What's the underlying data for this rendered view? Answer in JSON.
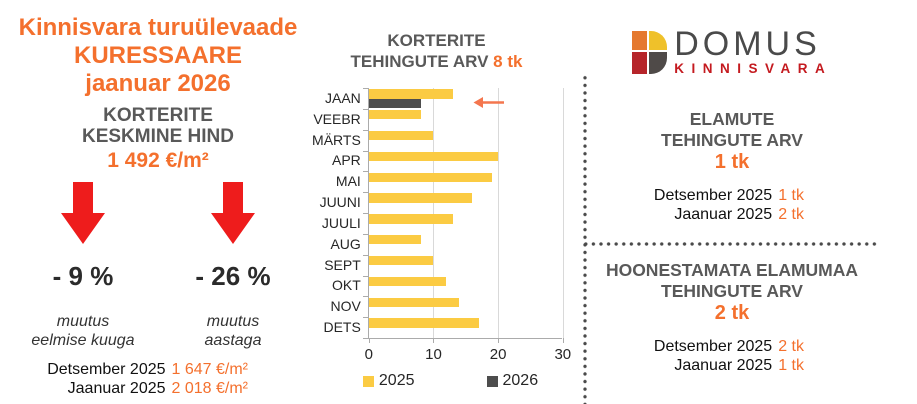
{
  "colors": {
    "accent_orange": "#F4702D",
    "arrow_red": "#EE1C1C",
    "heading_gray": "#595959",
    "bar_yellow": "#FBCB43",
    "bar_dark": "#4D4D4D",
    "logo_red": "#C41A1F"
  },
  "left_panel": {
    "title_lines": [
      "Kinnisvara turuülevaade",
      "KURESSAARE",
      "jaanuar 2026"
    ],
    "subtitle_lines": [
      "KORTERITE",
      "KESKMINE HIND"
    ],
    "price": "1 492 €/m²",
    "changes": [
      {
        "pct": "- 9 %",
        "caption_line1": "muutus",
        "caption_line2": "eelmise kuuga"
      },
      {
        "pct": "- 26 %",
        "caption_line1": "muutus",
        "caption_line2": "aastaga"
      }
    ],
    "stats": [
      {
        "label": "Detsember 2025",
        "value": "1 647 €/m²"
      },
      {
        "label": "Jaanuar 2025",
        "value": "2 018 €/m²"
      }
    ]
  },
  "chart": {
    "title_line1": "KORTERITE",
    "title_line2": "TEHINGUTE ARV",
    "title_value": "8 tk"
  },
  "chart_data": {
    "type": "bar",
    "orientation": "horizontal",
    "title": "KORTERITE TEHINGUTE ARV 8 tk",
    "categories": [
      "JAAN",
      "VEEBR",
      "MÄRTS",
      "APR",
      "MAI",
      "JUUNI",
      "JUULI",
      "AUG",
      "SEPT",
      "OKT",
      "NOV",
      "DETS"
    ],
    "series": [
      {
        "name": "2025",
        "color": "#FBCB43",
        "values": [
          13,
          8,
          10,
          20,
          19,
          16,
          13,
          8,
          10,
          12,
          14,
          17
        ]
      },
      {
        "name": "2026",
        "color": "#4D4D4D",
        "values": [
          8,
          null,
          null,
          null,
          null,
          null,
          null,
          null,
          null,
          null,
          null,
          null
        ]
      }
    ],
    "xlim": [
      0,
      30
    ],
    "xticks": [
      0,
      10,
      20,
      30
    ],
    "grid": true,
    "legend_position": "bottom",
    "annotation": {
      "symbol": "left-arrow",
      "target_category": "JAAN",
      "target_series": "2026",
      "color": "#F4764E"
    }
  },
  "logo": {
    "name": "DOMUS",
    "tagline": "KINNISVARA"
  },
  "right_panel": {
    "sections": [
      {
        "title_line1": "ELAMUTE",
        "title_line2": "TEHINGUTE ARV",
        "value": "1 tk",
        "stats": [
          {
            "label": "Detsember 2025",
            "value": "1 tk"
          },
          {
            "label": "Jaanuar 2025",
            "value": "2 tk"
          }
        ]
      },
      {
        "title_line1": "HOONESTAMATA ELAMUMAA",
        "title_line2": "TEHINGUTE ARV",
        "value": "2 tk",
        "stats": [
          {
            "label": "Detsember 2025",
            "value": "2 tk"
          },
          {
            "label": "Jaanuar 2025",
            "value": "1 tk"
          }
        ]
      }
    ]
  }
}
